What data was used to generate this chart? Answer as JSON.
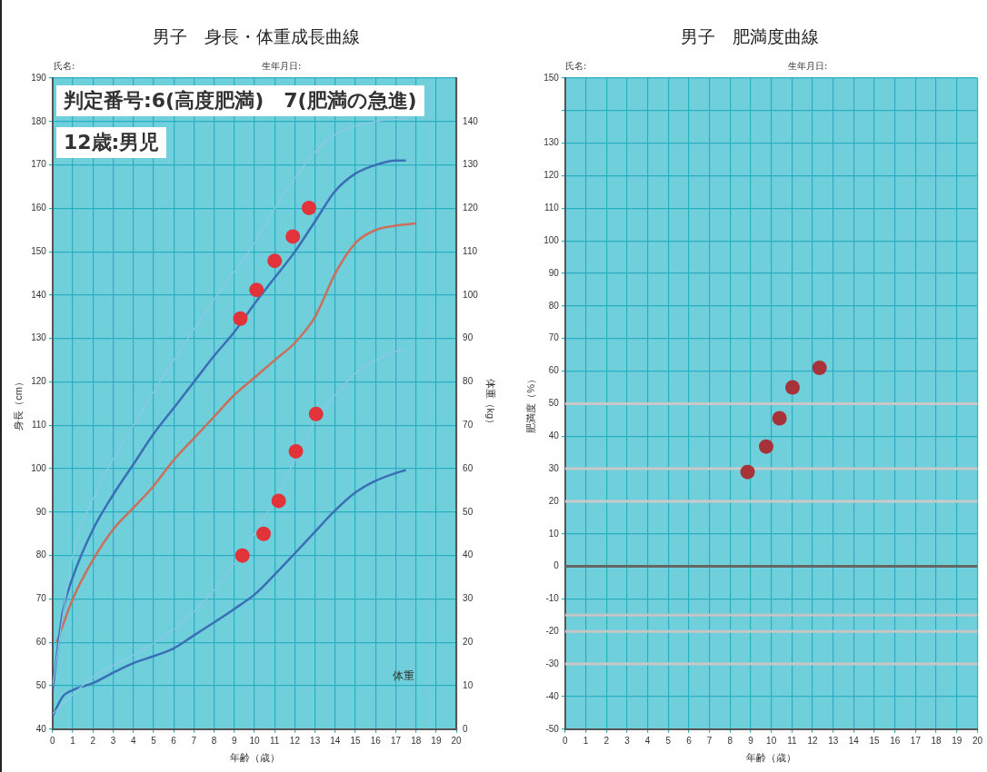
{
  "chart_data": [
    {
      "type": "line",
      "title": "男子　身長・体重成長曲線",
      "xlabel": "年齢（歳）",
      "ylabel": "身長（cm）",
      "y2label": "体重（kg）",
      "annotations": [
        "氏名:",
        "生年月日:",
        "判定番号:6(高度肥満)　7(肥満の急進)",
        "12歳:男児",
        "体重"
      ],
      "xlim": [
        0,
        20
      ],
      "xticks": [
        0,
        1,
        2,
        3,
        4,
        5,
        6,
        7,
        8,
        9,
        10,
        11,
        12,
        13,
        14,
        15,
        16,
        17,
        18,
        19,
        20
      ],
      "ylim": [
        40,
        190
      ],
      "yticks": [
        40,
        50,
        60,
        70,
        80,
        90,
        100,
        110,
        120,
        130,
        140,
        150,
        160,
        170,
        180,
        190
      ],
      "y2lim": [
        0,
        150
      ],
      "y2ticks": [
        0,
        10,
        20,
        30,
        40,
        50,
        60,
        70,
        80,
        90,
        100,
        110,
        120,
        130,
        140
      ],
      "grid": true,
      "legend": false,
      "series": [
        {
          "marker": "none",
          "color": "#8fc7e6",
          "x": [
            0,
            1,
            2,
            4,
            6,
            8,
            10,
            11,
            12,
            13,
            14,
            15,
            16,
            17,
            17.5
          ],
          "values": [
            50,
            80,
            93,
            110,
            125,
            139,
            152,
            160,
            167,
            173,
            177,
            179,
            180,
            180.5,
            180.5
          ]
        },
        {
          "marker": "none",
          "color": "#3a6fb5",
          "x": [
            0,
            0.5,
            1,
            2,
            3,
            4,
            5,
            6,
            7,
            8,
            9,
            10,
            11,
            12,
            13,
            14,
            15,
            16,
            17,
            17.5
          ],
          "values": [
            49,
            67,
            75,
            86,
            94,
            101,
            108,
            114,
            120,
            126,
            131.5,
            138,
            144,
            150,
            157,
            164,
            168,
            170,
            171,
            171
          ]
        },
        {
          "marker": "none",
          "color": "#c8705c",
          "x": [
            0.2,
            1,
            2,
            3,
            4,
            5,
            6,
            7,
            8,
            9,
            10,
            11,
            12,
            13,
            14,
            15,
            16,
            17,
            18
          ],
          "values": [
            60,
            70,
            79,
            86,
            91,
            96,
            102,
            107,
            112,
            117,
            121,
            125,
            129,
            135,
            145,
            152,
            155,
            156,
            156.5
          ]
        },
        {
          "axis": "y2",
          "marker": "none",
          "color": "#8fc7e6",
          "x": [
            0,
            2,
            4,
            6,
            8,
            10,
            11,
            12,
            13,
            14,
            15,
            16,
            17,
            17.5
          ],
          "values": [
            3.5,
            12,
            17,
            23,
            32,
            45,
            53,
            62,
            71,
            77,
            82,
            85,
            87,
            87.5
          ]
        },
        {
          "axis": "y2",
          "marker": "none",
          "color": "#3a6fb5",
          "x": [
            0,
            0.5,
            1,
            2,
            3,
            4,
            5,
            6,
            7,
            8,
            9,
            10,
            11,
            12,
            13,
            14,
            15,
            16,
            17,
            17.5
          ],
          "values": [
            3,
            7.5,
            9,
            10.6,
            13,
            15.2,
            16.8,
            18.6,
            21.6,
            24.6,
            27.7,
            31,
            35.6,
            40.5,
            45.5,
            50.4,
            54.5,
            57.2,
            59,
            59.7
          ]
        },
        {
          "type": "scatter",
          "marker": "circle",
          "color": "#e2333b",
          "x": [
            9.3,
            10.1,
            11.0,
            11.9,
            12.7
          ],
          "values": [
            134.6,
            141.2,
            147.9,
            153.5,
            160.1
          ]
        },
        {
          "type": "scatter",
          "axis": "y2",
          "marker": "circle",
          "color": "#e2333b",
          "x": [
            9.4,
            10.45,
            11.2,
            12.05,
            13.05
          ],
          "values": [
            40,
            45,
            52.6,
            64,
            72.6
          ]
        }
      ]
    },
    {
      "type": "scatter",
      "title": "男子　肥満度曲線",
      "xlabel": "年齢（歳）",
      "ylabel": "肥満度（%）",
      "annotations": [
        "氏名:",
        "生年月日:"
      ],
      "xlim": [
        0,
        20
      ],
      "xticks": [
        0,
        1,
        2,
        3,
        4,
        5,
        6,
        7,
        8,
        9,
        10,
        11,
        12,
        13,
        14,
        15,
        16,
        17,
        18,
        19,
        20
      ],
      "ylim": [
        -50,
        150
      ],
      "yticks": [
        -50,
        -40,
        -30,
        -20,
        -10,
        0,
        10,
        20,
        30,
        40,
        50,
        60,
        70,
        80,
        90,
        100,
        110,
        120,
        130,
        {
          "value": 140,
          "label": null
        },
        150
      ],
      "grid": true,
      "legend": false,
      "ref_lines": [
        {
          "axis": "y",
          "value": 0,
          "color": "#666666"
        },
        {
          "axis": "y",
          "value": 50,
          "color": "#c8c8c8"
        },
        {
          "axis": "y",
          "value": 30,
          "color": "#c9c9c9"
        },
        {
          "axis": "y",
          "value": 20,
          "color": "#cacaca"
        },
        {
          "axis": "y",
          "value": -15,
          "color": "#c4c4c4"
        },
        {
          "axis": "y",
          "value": -20,
          "color": "#c6c6c6"
        },
        {
          "axis": "y",
          "value": -30,
          "color": "#c7c7c7"
        }
      ],
      "series": [
        {
          "marker": "circle",
          "color": "#a8323a",
          "x": [
            8.85,
            9.75,
            10.4,
            11.03,
            12.34
          ],
          "values": [
            29,
            36.8,
            45.5,
            55,
            61
          ]
        }
      ]
    }
  ]
}
